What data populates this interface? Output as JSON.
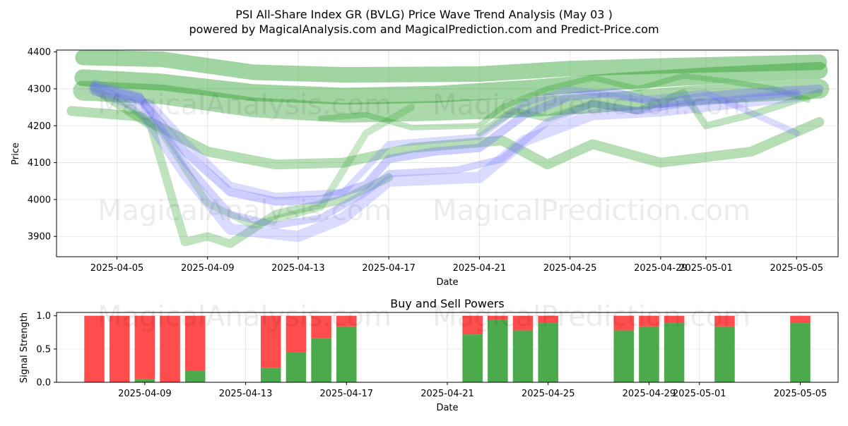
{
  "title_line1": "PSI All-Share Index GR (BVLG) Price Wave Trend Analysis (May 03 )",
  "title_line2": "powered by MagicalAnalysis.com and MagicalPrediction.com and Predict-Price.com",
  "watermarks": [
    "MagicalAnalysis.com",
    "MagicalPrediction.com"
  ],
  "colors": {
    "green": "#2ca02c",
    "blue": "#6f6fff",
    "buy": "#4caa4c",
    "sell": "#ff4c4c"
  },
  "chart_data": [
    {
      "type": "area",
      "title": "",
      "xlabel": "Date",
      "ylabel": "Price",
      "ylim": [
        3845,
        4405
      ],
      "xlim": [
        "2025-04-02T08:00",
        "2025-05-06T20:00"
      ],
      "grid": true,
      "x_ticks": [
        "2025-04-05",
        "2025-04-09",
        "2025-04-13",
        "2025-04-17",
        "2025-04-21",
        "2025-04-25",
        "2025-04-29",
        "2025-05-01",
        "2025-05-05"
      ],
      "y_ticks": [
        3900,
        4000,
        4100,
        4200,
        4300,
        4400
      ],
      "series": [
        {
          "color": "green",
          "width": 22,
          "opacity": 0.45,
          "points": [
            [
              "2025-04-03T12:00",
              4385
            ],
            [
              "2025-04-07",
              4380
            ],
            [
              "2025-04-11",
              4345
            ],
            [
              "2025-04-15",
              4338
            ],
            [
              "2025-04-21",
              4340
            ],
            [
              "2025-04-25",
              4355
            ],
            [
              "2025-04-29",
              4362
            ],
            [
              "2025-05-06",
              4372
            ]
          ]
        },
        {
          "color": "green",
          "width": 24,
          "opacity": 0.45,
          "points": [
            [
              "2025-04-03T12:00",
              4330
            ],
            [
              "2025-04-07",
              4318
            ],
            [
              "2025-04-11",
              4290
            ],
            [
              "2025-04-15",
              4280
            ],
            [
              "2025-04-19",
              4285
            ],
            [
              "2025-04-23",
              4300
            ],
            [
              "2025-04-27",
              4320
            ],
            [
              "2025-05-01",
              4335
            ],
            [
              "2025-05-06",
              4350
            ]
          ]
        },
        {
          "color": "green",
          "width": 28,
          "opacity": 0.4,
          "points": [
            [
              "2025-04-03T12:00",
              4295
            ],
            [
              "2025-04-07",
              4285
            ],
            [
              "2025-04-11",
              4250
            ],
            [
              "2025-04-15",
              4235
            ],
            [
              "2025-04-19",
              4240
            ],
            [
              "2025-04-23",
              4250
            ],
            [
              "2025-04-27",
              4265
            ],
            [
              "2025-05-01",
              4285
            ],
            [
              "2025-05-06",
              4300
            ]
          ]
        },
        {
          "color": "green",
          "width": 14,
          "opacity": 0.35,
          "points": [
            [
              "2025-04-03",
              4240
            ],
            [
              "2025-04-06",
              4225
            ],
            [
              "2025-04-09",
              4130
            ],
            [
              "2025-04-12",
              4095
            ],
            [
              "2025-04-15",
              4100
            ],
            [
              "2025-04-18",
              4140
            ],
            [
              "2025-04-22",
              4160
            ],
            [
              "2025-04-24",
              4095
            ],
            [
              "2025-04-26",
              4150
            ],
            [
              "2025-04-29",
              4100
            ],
            [
              "2025-05-03",
              4130
            ],
            [
              "2025-05-06",
              4210
            ]
          ]
        },
        {
          "color": "green",
          "width": 12,
          "opacity": 0.3,
          "points": [
            [
              "2025-04-04",
              4300
            ],
            [
              "2025-04-06T12:00",
              4200
            ],
            [
              "2025-04-08",
              3885
            ],
            [
              "2025-04-09",
              3900
            ],
            [
              "2025-04-10",
              3880
            ],
            [
              "2025-04-12",
              3960
            ],
            [
              "2025-04-15",
              4000
            ],
            [
              "2025-04-17",
              4060
            ]
          ]
        },
        {
          "color": "green",
          "width": 10,
          "opacity": 0.25,
          "points": [
            [
              "2025-04-05",
              4280
            ],
            [
              "2025-04-07",
              4180
            ],
            [
              "2025-04-09",
              3990
            ],
            [
              "2025-04-11",
              3930
            ],
            [
              "2025-04-14",
              3980
            ],
            [
              "2025-04-16",
              4180
            ],
            [
              "2025-04-18",
              4250
            ]
          ]
        },
        {
          "color": "green",
          "width": 8,
          "opacity": 0.3,
          "points": [
            [
              "2025-04-14",
              4220
            ],
            [
              "2025-04-16",
              4230
            ],
            [
              "2025-04-18",
              4195
            ],
            [
              "2025-04-21",
              4200
            ],
            [
              "2025-04-22",
              4250
            ],
            [
              "2025-04-24",
              4300
            ],
            [
              "2025-04-26",
              4330
            ],
            [
              "2025-04-28",
              4300
            ],
            [
              "2025-04-30",
              4335
            ],
            [
              "2025-05-02",
              4320
            ],
            [
              "2025-05-04",
              4300
            ],
            [
              "2025-05-05T12:00",
              4270
            ]
          ]
        },
        {
          "color": "green",
          "width": 10,
          "opacity": 0.3,
          "points": [
            [
              "2025-04-21",
              4180
            ],
            [
              "2025-04-22T12:00",
              4240
            ],
            [
              "2025-04-24",
              4220
            ],
            [
              "2025-04-26",
              4260
            ],
            [
              "2025-04-28",
              4240
            ],
            [
              "2025-04-30",
              4290
            ],
            [
              "2025-05-01",
              4200
            ],
            [
              "2025-05-03",
              4230
            ],
            [
              "2025-05-06",
              4290
            ]
          ]
        },
        {
          "color": "blue",
          "width": 12,
          "opacity": 0.35,
          "points": [
            [
              "2025-04-04",
              4305
            ],
            [
              "2025-04-06",
              4275
            ],
            [
              "2025-04-08",
              4130
            ],
            [
              "2025-04-10",
              4020
            ],
            [
              "2025-04-12",
              3995
            ],
            [
              "2025-04-14",
              4000
            ],
            [
              "2025-04-16",
              4040
            ],
            [
              "2025-04-17",
              4110
            ],
            [
              "2025-04-19",
              4130
            ],
            [
              "2025-04-21",
              4140
            ],
            [
              "2025-04-23",
              4230
            ],
            [
              "2025-04-25",
              4280
            ],
            [
              "2025-04-27",
              4290
            ],
            [
              "2025-04-29",
              4260
            ],
            [
              "2025-05-01",
              4280
            ],
            [
              "2025-05-03",
              4290
            ],
            [
              "2025-05-06",
              4300
            ]
          ]
        },
        {
          "color": "blue",
          "width": 10,
          "opacity": 0.3,
          "points": [
            [
              "2025-04-04",
              4315
            ],
            [
              "2025-04-06",
              4280
            ],
            [
              "2025-04-08",
              4100
            ],
            [
              "2025-04-10",
              3960
            ],
            [
              "2025-04-12",
              3930
            ],
            [
              "2025-04-14",
              3950
            ],
            [
              "2025-04-16",
              4020
            ],
            [
              "2025-04-17",
              4070
            ],
            [
              "2025-04-20",
              4080
            ],
            [
              "2025-04-22",
              4110
            ],
            [
              "2025-04-24",
              4210
            ],
            [
              "2025-04-26",
              4260
            ],
            [
              "2025-04-28",
              4240
            ],
            [
              "2025-04-30",
              4260
            ],
            [
              "2025-05-02",
              4270
            ],
            [
              "2025-05-05",
              4290
            ]
          ]
        },
        {
          "color": "blue",
          "width": 16,
          "opacity": 0.25,
          "points": [
            [
              "2025-04-04",
              4300
            ],
            [
              "2025-04-06",
              4250
            ],
            [
              "2025-04-08",
              4070
            ],
            [
              "2025-04-10",
              3920
            ],
            [
              "2025-04-13",
              3900
            ],
            [
              "2025-04-15",
              3950
            ],
            [
              "2025-04-17",
              4050
            ],
            [
              "2025-04-21",
              4060
            ],
            [
              "2025-04-23",
              4160
            ],
            [
              "2025-04-26",
              4230
            ],
            [
              "2025-04-29",
              4240
            ],
            [
              "2025-05-02",
              4260
            ],
            [
              "2025-05-05",
              4280
            ]
          ]
        },
        {
          "color": "blue",
          "width": 9,
          "opacity": 0.25,
          "points": [
            [
              "2025-04-04",
              4290
            ],
            [
              "2025-04-06T12:00",
              4260
            ],
            [
              "2025-04-08",
              4160
            ],
            [
              "2025-04-10",
              4040
            ],
            [
              "2025-04-12",
              4010
            ],
            [
              "2025-04-15",
              4020
            ],
            [
              "2025-04-17",
              4150
            ],
            [
              "2025-04-21",
              4170
            ],
            [
              "2025-04-23",
              4260
            ],
            [
              "2025-04-25",
              4300
            ],
            [
              "2025-04-28",
              4270
            ],
            [
              "2025-05-01",
              4290
            ],
            [
              "2025-05-05",
              4180
            ]
          ]
        }
      ]
    },
    {
      "type": "bar",
      "title": "Buy and Sell Powers",
      "xlabel": "Date",
      "ylabel": "Signal Strength",
      "ylim": [
        0,
        1.05
      ],
      "xlim": [
        "2025-04-05T12:00",
        "2025-05-06T12:00"
      ],
      "grid": true,
      "x_ticks": [
        "2025-04-09",
        "2025-04-13",
        "2025-04-17",
        "2025-04-21",
        "2025-04-25",
        "2025-04-29",
        "2025-05-01",
        "2025-05-05"
      ],
      "y_ticks": [
        0.0,
        0.5,
        1.0
      ],
      "series": [
        {
          "name": "",
          "color": "buy",
          "role": "buy"
        },
        {
          "name": "",
          "color": "sell",
          "role": "sell"
        }
      ],
      "bars": [
        {
          "date": "2025-04-07",
          "buy": 0.0
        },
        {
          "date": "2025-04-08",
          "buy": 0.0
        },
        {
          "date": "2025-04-09",
          "buy": 0.05
        },
        {
          "date": "2025-04-10",
          "buy": 0.0
        },
        {
          "date": "2025-04-11",
          "buy": 0.17
        },
        {
          "date": "2025-04-14",
          "buy": 0.22
        },
        {
          "date": "2025-04-15",
          "buy": 0.45
        },
        {
          "date": "2025-04-16",
          "buy": 0.66
        },
        {
          "date": "2025-04-17",
          "buy": 0.84
        },
        {
          "date": "2025-04-22",
          "buy": 0.72
        },
        {
          "date": "2025-04-23",
          "buy": 0.94
        },
        {
          "date": "2025-04-24",
          "buy": 0.78
        },
        {
          "date": "2025-04-25",
          "buy": 0.89
        },
        {
          "date": "2025-04-28",
          "buy": 0.78
        },
        {
          "date": "2025-04-29",
          "buy": 0.84
        },
        {
          "date": "2025-04-30",
          "buy": 0.89
        },
        {
          "date": "2025-05-02",
          "buy": 0.84
        },
        {
          "date": "2025-05-05",
          "buy": 0.89
        }
      ]
    }
  ]
}
